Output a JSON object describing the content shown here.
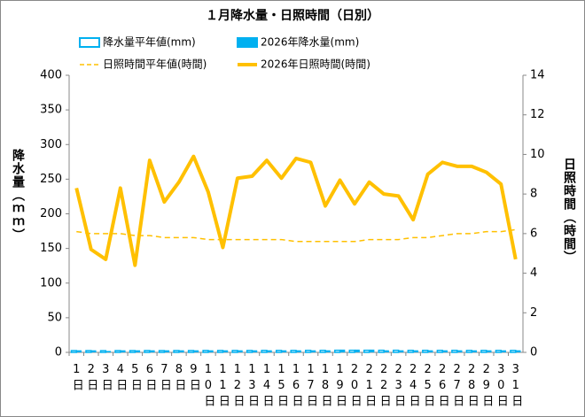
{
  "chart_data": {
    "type": "combo",
    "title": "１月降水量・日照時間（日別）",
    "y_label": "降水量（ｍｍ）",
    "y2_label": "日照時間（時間）",
    "categories": [
      "1日",
      "2日",
      "3日",
      "4日",
      "5日",
      "6日",
      "7日",
      "8日",
      "9日",
      "10日",
      "11日",
      "12日",
      "13日",
      "14日",
      "15日",
      "16日",
      "17日",
      "18日",
      "19日",
      "20日",
      "21日",
      "22日",
      "23日",
      "24日",
      "25日",
      "26日",
      "27日",
      "28日",
      "29日",
      "30日",
      "31日"
    ],
    "ylim": [
      0,
      400
    ],
    "yticks": [
      0,
      50,
      100,
      150,
      200,
      250,
      300,
      350,
      400
    ],
    "y2lim": [
      0,
      14
    ],
    "y2ticks": [
      0,
      2,
      4,
      6,
      8,
      10,
      12,
      14
    ],
    "grid": false,
    "series": [
      {
        "name": "降水量平年値(mm)",
        "kind": "bar",
        "style": "outline",
        "color": "#00b0f0",
        "values": [
          2.5,
          2.5,
          2.4,
          2.5,
          2.5,
          2.6,
          2.5,
          2.6,
          2.6,
          2.7,
          2.7,
          2.7,
          2.7,
          2.8,
          2.8,
          2.8,
          2.9,
          2.9,
          3.0,
          3.0,
          3.0,
          3.0,
          3.0,
          2.9,
          2.9,
          2.9,
          2.9,
          2.8,
          2.8,
          2.8,
          2.8
        ]
      },
      {
        "name": "2026年降水量(mm)",
        "kind": "bar",
        "style": "solid",
        "color": "#00b0f0",
        "values": [
          3,
          3,
          2,
          3,
          3,
          3,
          3,
          3,
          3,
          3,
          3,
          3,
          3,
          3,
          3,
          3,
          3,
          3,
          4,
          4,
          4,
          3,
          3,
          3,
          3,
          3,
          3,
          3,
          3,
          3,
          3
        ]
      },
      {
        "name": "日照時間平年値(時間)",
        "kind": "line",
        "style": "dashed",
        "color": "#ffc000",
        "axis": "y2",
        "values": [
          6.1,
          6.0,
          6.0,
          6.0,
          5.9,
          5.9,
          5.8,
          5.8,
          5.8,
          5.7,
          5.7,
          5.7,
          5.7,
          5.7,
          5.7,
          5.6,
          5.6,
          5.6,
          5.6,
          5.6,
          5.7,
          5.7,
          5.7,
          5.8,
          5.8,
          5.9,
          6.0,
          6.0,
          6.1,
          6.1,
          6.2
        ]
      },
      {
        "name": "2026年日照時間(時間)",
        "kind": "line",
        "style": "solid",
        "color": "#ffc000",
        "axis": "y2",
        "values": [
          8.3,
          5.2,
          4.7,
          8.3,
          4.4,
          9.7,
          7.6,
          8.6,
          9.9,
          8.1,
          5.3,
          8.8,
          8.9,
          9.7,
          8.8,
          9.8,
          9.6,
          7.4,
          8.7,
          7.5,
          8.6,
          8.0,
          7.9,
          6.7,
          9.0,
          9.6,
          9.4,
          9.4,
          9.1,
          8.5,
          4.7
        ]
      }
    ]
  }
}
